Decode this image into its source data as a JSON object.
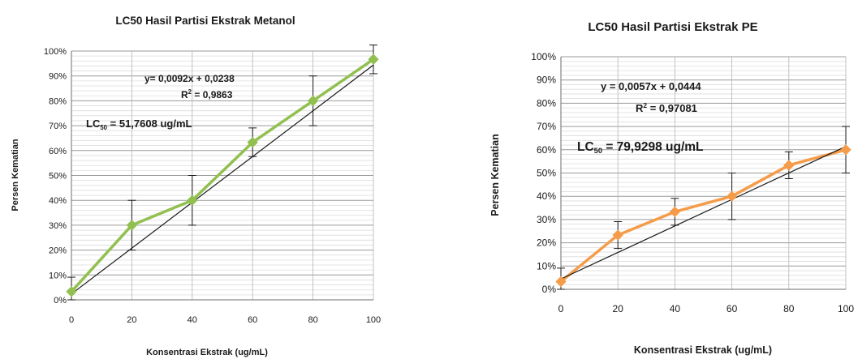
{
  "chart_data": [
    {
      "type": "line",
      "title": "LC50 Hasil Partisi Ekstrak Metanol",
      "xlabel": "Konsentrasi Ekstrak (ug/mL)",
      "ylabel": "Persen Kematian",
      "x": [
        0,
        20,
        40,
        60,
        80,
        100
      ],
      "x_tick_labels": [
        "0",
        "20",
        "40",
        "60",
        "80",
        "100"
      ],
      "y_tick_labels": [
        "0%",
        "10%",
        "20%",
        "30%",
        "40%",
        "50%",
        "60%",
        "70%",
        "80%",
        "90%",
        "100%"
      ],
      "xlim": [
        0,
        100
      ],
      "ylim": [
        0,
        1
      ],
      "grid": "horizontal",
      "series": [
        {
          "values": [
            0.0333,
            0.3,
            0.4,
            0.6333,
            0.8,
            0.9667
          ],
          "error": [
            0.0577,
            0.1,
            0.1,
            0.0577,
            0.1,
            0.0577
          ],
          "color": "#92c050",
          "marker": "diamond"
        }
      ],
      "trendline": {
        "slope": 0.0092,
        "intercept": 0.0238,
        "color": "#1a1a1a"
      },
      "annotations": {
        "equation": "y= 0,0092x + 0,0238",
        "r2_prefix": "R",
        "r2_sup": "2",
        "r2_value": " = 0,9863",
        "lc_prefix": "LC",
        "lc_sub": "50",
        "lc_value": " = 51,7608  ug/mL"
      }
    },
    {
      "type": "line",
      "title": "LC50 Hasil Partisi Ekstrak PE",
      "xlabel": "Konsentrasi Ekstrak (ug/mL)",
      "ylabel": "Persen Kematian",
      "x": [
        0,
        20,
        40,
        60,
        80,
        100
      ],
      "x_tick_labels": [
        "0",
        "20",
        "40",
        "60",
        "80",
        "100"
      ],
      "y_tick_labels": [
        "0%",
        "10%",
        "20%",
        "30%",
        "40%",
        "50%",
        "60%",
        "70%",
        "80%",
        "90%",
        "100%"
      ],
      "xlim": [
        0,
        100
      ],
      "ylim": [
        0,
        1
      ],
      "grid": "horizontal",
      "series": [
        {
          "values": [
            0.0333,
            0.2333,
            0.3333,
            0.4,
            0.5333,
            0.6
          ],
          "error": [
            0.0577,
            0.0577,
            0.0577,
            0.1,
            0.0577,
            0.1
          ],
          "color": "#f59c4a",
          "marker": "diamond"
        }
      ],
      "trendline": {
        "slope": 0.0057,
        "intercept": 0.0444,
        "color": "#1a1a1a"
      },
      "annotations": {
        "equation": "y = 0,0057x + 0,0444",
        "r2_prefix": "R",
        "r2_sup": "2",
        "r2_value": " = 0,97081",
        "lc_prefix": "LC",
        "lc_sub": "50",
        "lc_value": " = 79,9298  ug/mL"
      }
    }
  ]
}
